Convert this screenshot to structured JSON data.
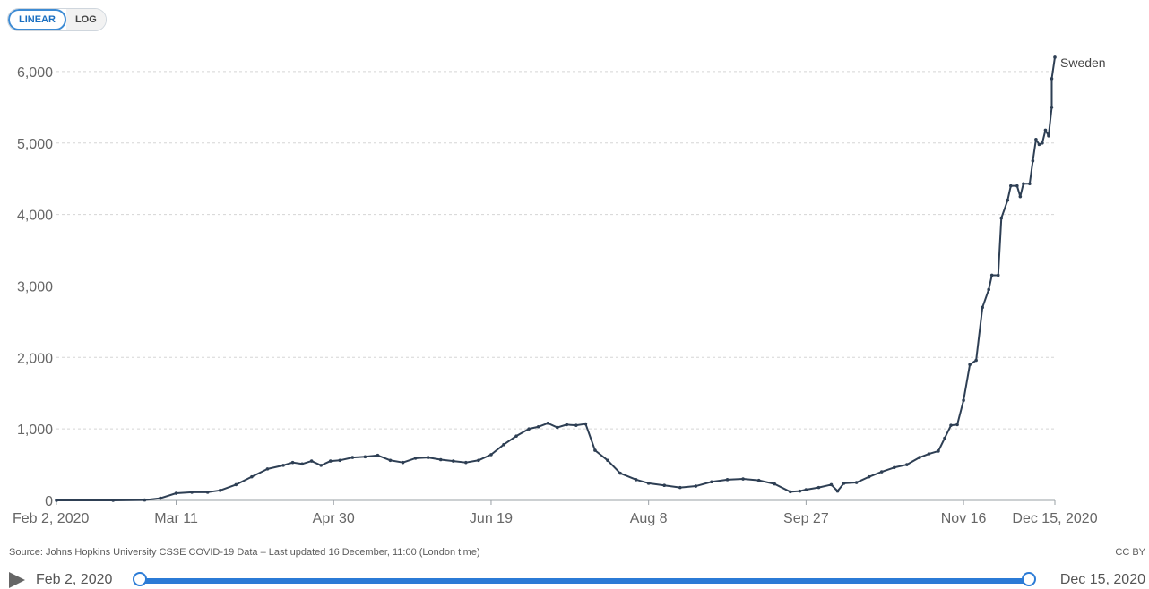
{
  "controls": {
    "linear_label": "LINEAR",
    "log_label": "LOG",
    "active": "linear"
  },
  "chart_data": {
    "type": "line",
    "x_type": "date",
    "ylim": [
      0,
      6500
    ],
    "yticks": [
      0,
      1000,
      2000,
      3000,
      4000,
      5000,
      6000
    ],
    "ytick_labels": [
      "0",
      "1,000",
      "2,000",
      "3,000",
      "4,000",
      "5,000",
      "6,000"
    ],
    "xlim": [
      "2020-02-02",
      "2020-12-15"
    ],
    "xticks": [
      "2020-02-02",
      "2020-03-11",
      "2020-04-30",
      "2020-06-19",
      "2020-08-08",
      "2020-09-27",
      "2020-11-16",
      "2020-12-15"
    ],
    "xtick_labels": [
      "Feb 2, 2020",
      "Mar 11",
      "Apr 30",
      "Jun 19",
      "Aug 8",
      "Sep 27",
      "Nov 16",
      "Dec 15, 2020"
    ],
    "grid": "horizontal-dotted",
    "line_color": "#2e3f54",
    "series": [
      {
        "name": "Sweden",
        "points": [
          [
            "2020-02-02",
            0
          ],
          [
            "2020-02-20",
            0
          ],
          [
            "2020-03-01",
            5
          ],
          [
            "2020-03-06",
            30
          ],
          [
            "2020-03-11",
            100
          ],
          [
            "2020-03-16",
            115
          ],
          [
            "2020-03-21",
            115
          ],
          [
            "2020-03-25",
            140
          ],
          [
            "2020-03-30",
            220
          ],
          [
            "2020-04-04",
            330
          ],
          [
            "2020-04-09",
            440
          ],
          [
            "2020-04-14",
            490
          ],
          [
            "2020-04-17",
            530
          ],
          [
            "2020-04-20",
            510
          ],
          [
            "2020-04-23",
            550
          ],
          [
            "2020-04-26",
            490
          ],
          [
            "2020-04-29",
            550
          ],
          [
            "2020-05-02",
            560
          ],
          [
            "2020-05-06",
            600
          ],
          [
            "2020-05-10",
            610
          ],
          [
            "2020-05-14",
            630
          ],
          [
            "2020-05-18",
            560
          ],
          [
            "2020-05-22",
            530
          ],
          [
            "2020-05-26",
            590
          ],
          [
            "2020-05-30",
            600
          ],
          [
            "2020-06-03",
            570
          ],
          [
            "2020-06-07",
            550
          ],
          [
            "2020-06-11",
            530
          ],
          [
            "2020-06-15",
            560
          ],
          [
            "2020-06-19",
            640
          ],
          [
            "2020-06-23",
            780
          ],
          [
            "2020-06-27",
            900
          ],
          [
            "2020-07-01",
            1000
          ],
          [
            "2020-07-04",
            1030
          ],
          [
            "2020-07-07",
            1080
          ],
          [
            "2020-07-10",
            1020
          ],
          [
            "2020-07-13",
            1060
          ],
          [
            "2020-07-16",
            1050
          ],
          [
            "2020-07-19",
            1070
          ],
          [
            "2020-07-22",
            700
          ],
          [
            "2020-07-26",
            560
          ],
          [
            "2020-07-30",
            380
          ],
          [
            "2020-08-04",
            290
          ],
          [
            "2020-08-08",
            240
          ],
          [
            "2020-08-13",
            210
          ],
          [
            "2020-08-18",
            180
          ],
          [
            "2020-08-23",
            200
          ],
          [
            "2020-08-28",
            260
          ],
          [
            "2020-09-02",
            290
          ],
          [
            "2020-09-07",
            300
          ],
          [
            "2020-09-12",
            280
          ],
          [
            "2020-09-17",
            230
          ],
          [
            "2020-09-22",
            120
          ],
          [
            "2020-09-25",
            130
          ],
          [
            "2020-09-27",
            150
          ],
          [
            "2020-10-01",
            180
          ],
          [
            "2020-10-05",
            220
          ],
          [
            "2020-10-07",
            130
          ],
          [
            "2020-10-09",
            240
          ],
          [
            "2020-10-13",
            250
          ],
          [
            "2020-10-17",
            330
          ],
          [
            "2020-10-21",
            400
          ],
          [
            "2020-10-25",
            460
          ],
          [
            "2020-10-29",
            500
          ],
          [
            "2020-11-02",
            600
          ],
          [
            "2020-11-05",
            650
          ],
          [
            "2020-11-08",
            690
          ],
          [
            "2020-11-10",
            870
          ],
          [
            "2020-11-12",
            1050
          ],
          [
            "2020-11-14",
            1060
          ],
          [
            "2020-11-16",
            1400
          ],
          [
            "2020-11-18",
            1900
          ],
          [
            "2020-11-20",
            1960
          ],
          [
            "2020-11-22",
            2700
          ],
          [
            "2020-11-24",
            2950
          ],
          [
            "2020-11-25",
            3150
          ],
          [
            "2020-11-27",
            3150
          ],
          [
            "2020-11-28",
            3950
          ],
          [
            "2020-11-30",
            4200
          ],
          [
            "2020-12-01",
            4400
          ],
          [
            "2020-12-03",
            4400
          ],
          [
            "2020-12-04",
            4250
          ],
          [
            "2020-12-05",
            4430
          ],
          [
            "2020-12-07",
            4430
          ],
          [
            "2020-12-08",
            4750
          ],
          [
            "2020-12-09",
            5050
          ],
          [
            "2020-12-10",
            4980
          ],
          [
            "2020-12-11",
            5000
          ],
          [
            "2020-12-12",
            5180
          ],
          [
            "2020-12-13",
            5100
          ],
          [
            "2020-12-14",
            5500
          ],
          [
            "2020-12-14",
            5900
          ],
          [
            "2020-12-15",
            6200
          ]
        ]
      }
    ]
  },
  "footer": {
    "source": "Source: Johns Hopkins University CSSE COVID-19 Data – Last updated 16 December, 11:00 (London time)",
    "license": "CC BY"
  },
  "timeline": {
    "start_label": "Feb 2, 2020",
    "end_label": "Dec 15, 2020"
  }
}
